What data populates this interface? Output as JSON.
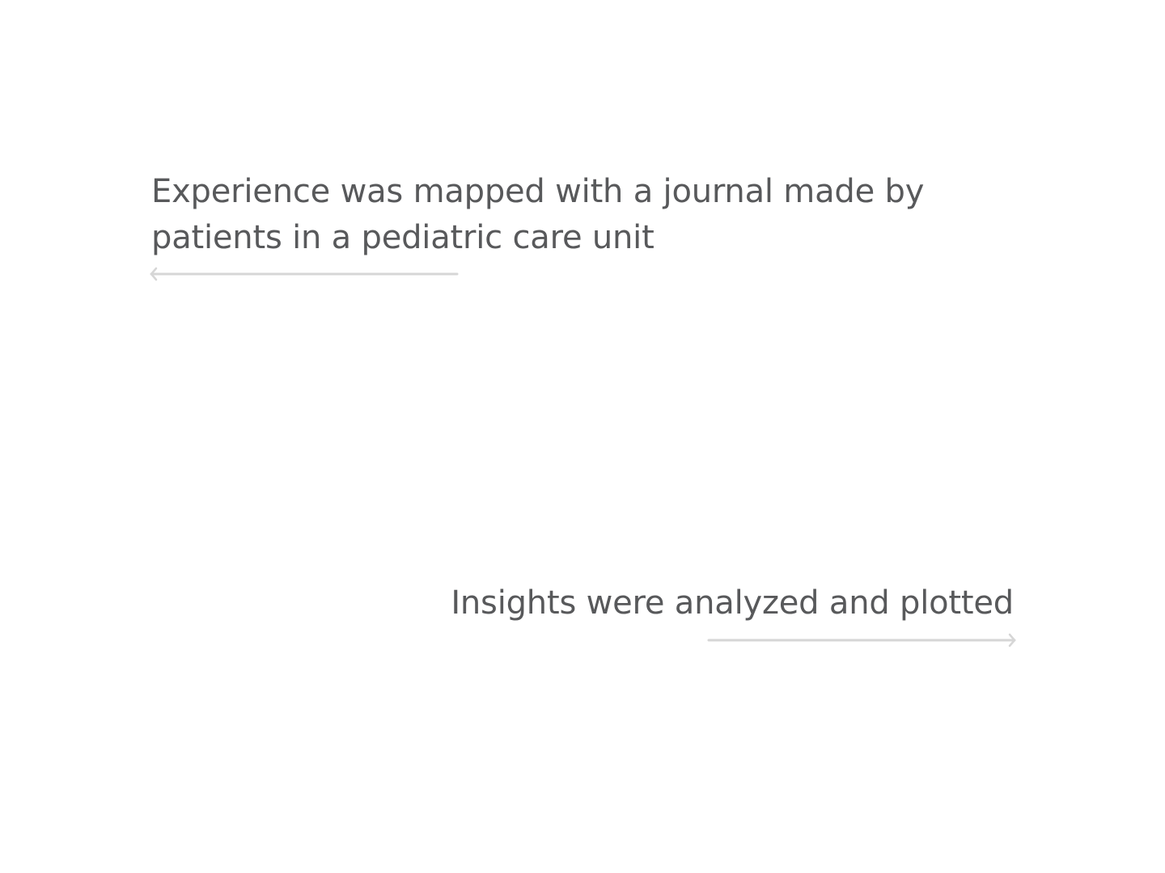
{
  "slides": {
    "top_caption": {
      "text": "Experience was mapped with a journal made by patients in a pediatric care unit",
      "arrow_direction": "left",
      "arrow_icon": "arrow-left-icon"
    },
    "bottom_caption": {
      "text": "Insights were analyzed and plotted",
      "arrow_direction": "right",
      "arrow_icon": "arrow-right-icon"
    }
  },
  "colors": {
    "text": "#58595b",
    "arrow": "#d6d6d6",
    "background": "#ffffff"
  }
}
